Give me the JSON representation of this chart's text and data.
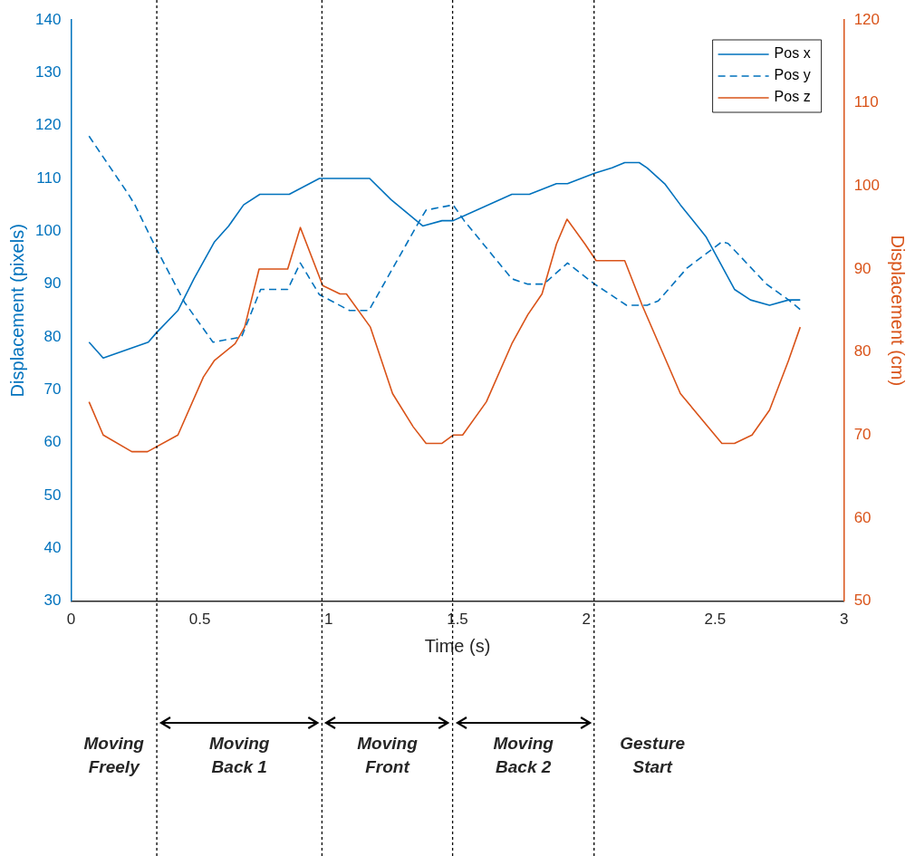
{
  "chart_data": {
    "type": "line",
    "xlabel": "Time (s)",
    "ylabel": "Displacement (pixels)",
    "y2label": "Displacement (cm)",
    "xlim": [
      0,
      3
    ],
    "xticks": [
      0,
      0.5,
      1,
      1.5,
      2,
      2.5,
      3
    ],
    "ylim": [
      30,
      140
    ],
    "yticks": [
      30,
      40,
      50,
      60,
      70,
      80,
      90,
      100,
      110,
      120,
      130,
      140
    ],
    "y2lim": [
      50,
      120
    ],
    "y2ticks": [
      50,
      60,
      70,
      80,
      90,
      100,
      110,
      120
    ],
    "grid": false,
    "legend": "top right",
    "marker": "none",
    "series": [
      {
        "name": "Pos x",
        "color": "#0072bd",
        "line_style": "solid",
        "x": [
          0.07,
          0.125,
          0.3,
          0.33,
          0.415,
          0.477,
          0.557,
          0.612,
          0.67,
          0.733,
          0.847,
          0.964,
          0.98,
          1.159,
          1.242,
          1.365,
          1.44,
          1.483,
          1.711,
          1.779,
          1.884,
          1.927,
          2.032,
          2.1,
          2.149,
          2.205,
          2.236,
          2.304,
          2.365,
          2.464,
          2.575,
          2.637,
          2.711,
          2.785,
          2.83
        ],
        "values": [
          79,
          76,
          79,
          80.7,
          85,
          91,
          98,
          101,
          105,
          107,
          107,
          110,
          110,
          110,
          106,
          101,
          102,
          102,
          107,
          107,
          109,
          109,
          111,
          112,
          113,
          113,
          112,
          109,
          105,
          99,
          89,
          87,
          86,
          87,
          87
        ]
      },
      {
        "name": "Pos y",
        "color": "#0072bd",
        "line_style": "dashed",
        "x": [
          0.07,
          0.223,
          0.248,
          0.328,
          0.44,
          0.551,
          0.662,
          0.736,
          0.841,
          0.89,
          0.964,
          1.081,
          1.156,
          1.353,
          1.378,
          1.483,
          1.526,
          1.711,
          1.773,
          1.835,
          1.927,
          2.032,
          2.156,
          2.236,
          2.279,
          2.39,
          2.526,
          2.55,
          2.699,
          2.785,
          2.835
        ],
        "values": [
          118,
          107,
          105,
          97,
          86.6,
          79,
          80,
          89,
          89,
          94,
          88,
          85,
          85,
          102,
          104,
          105,
          102,
          91,
          90,
          90,
          94,
          90,
          86,
          86,
          86.8,
          93,
          98,
          97.7,
          90,
          87,
          85
        ]
      },
      {
        "name": "Pos z",
        "color": "#d95319",
        "line_style": "solid",
        "axis": "y2",
        "x": [
          0.07,
          0.125,
          0.236,
          0.297,
          0.415,
          0.514,
          0.557,
          0.637,
          0.674,
          0.73,
          0.841,
          0.89,
          0.977,
          1.044,
          1.069,
          1.162,
          1.248,
          1.328,
          1.378,
          1.44,
          1.483,
          1.52,
          1.612,
          1.711,
          1.773,
          1.828,
          1.884,
          1.925,
          1.995,
          2.038,
          2.149,
          2.217,
          2.365,
          2.526,
          2.575,
          2.643,
          2.711,
          2.785,
          2.83
        ],
        "values": [
          74,
          70,
          68,
          68,
          70,
          77,
          79,
          81,
          83,
          90,
          90,
          95,
          88,
          87,
          87,
          83,
          75,
          71,
          69,
          69,
          70,
          70,
          74,
          81,
          84.5,
          87,
          93,
          96,
          93,
          91,
          91,
          85.6,
          75,
          69,
          69,
          70,
          73,
          79,
          83
        ]
      }
    ],
    "ref_lines": [
      {
        "axis": "x",
        "value": 0.333,
        "color": "#000000",
        "line_style": "dotted"
      },
      {
        "axis": "x",
        "value": 0.974,
        "color": "#000000",
        "line_style": "dotted"
      },
      {
        "axis": "x",
        "value": 1.481,
        "color": "#000000",
        "line_style": "dotted"
      },
      {
        "axis": "x",
        "value": 2.03,
        "color": "#000000",
        "line_style": "dotted"
      }
    ],
    "annotations": [
      "Moving Freely",
      "Moving Back 1",
      "Moving Front",
      "Moving Back 2",
      "Gesture Start"
    ]
  }
}
